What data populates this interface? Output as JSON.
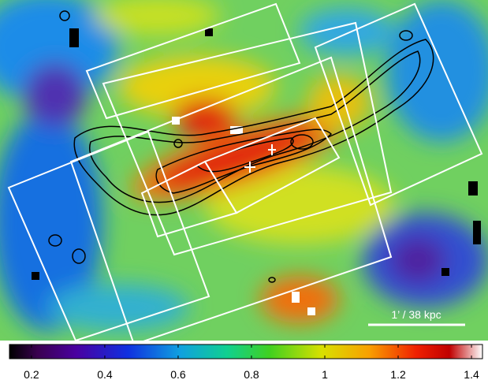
{
  "image": {
    "scale_bar": "1’ / 38 kpc"
  },
  "colorbar": {
    "clim": [
      0.14,
      1.43
    ],
    "ticks": [
      0.2,
      0.4,
      0.6,
      0.8,
      1,
      1.2,
      1.4
    ]
  }
}
